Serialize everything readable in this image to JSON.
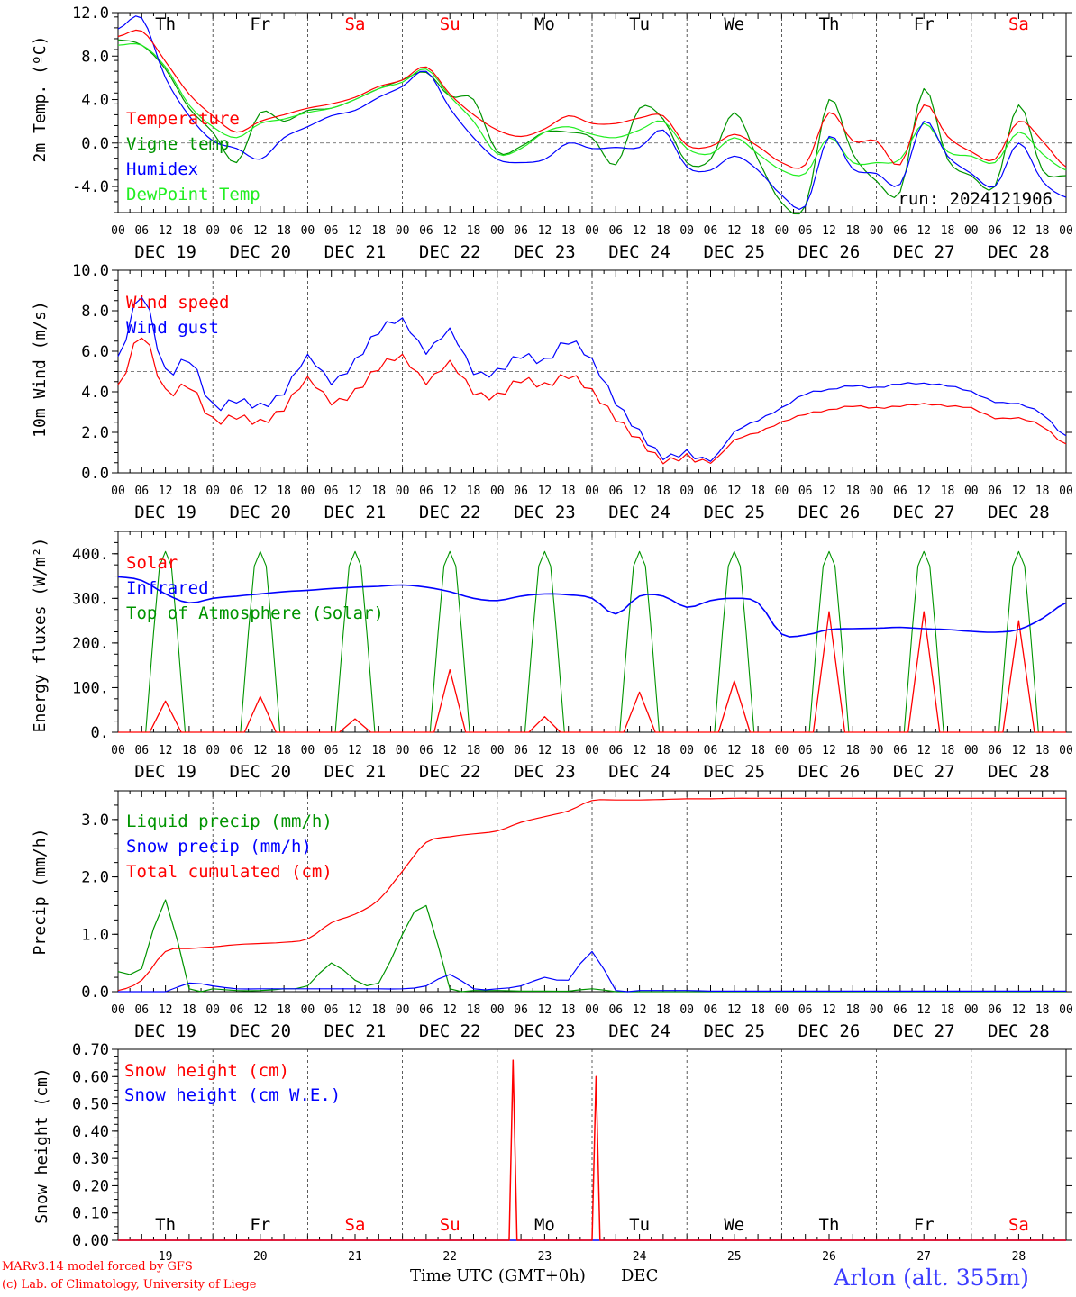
{
  "footer": {
    "credit1": "MARv3.14 model forced by GFS",
    "credit2": "(c) Lab. of Climatology, University of Liege",
    "xtitle": "Time UTC (GMT+0h)",
    "month": "DEC",
    "station": "Arlon (alt. 355m)"
  },
  "colors": {
    "red": "#ff0000",
    "green": "#009400",
    "blue": "#0000ff",
    "lightgreen": "#22ee22"
  },
  "days": [
    "Th",
    "Fr",
    "Sa",
    "Su",
    "Mo",
    "Tu",
    "We",
    "Th",
    "Fr",
    "Sa"
  ],
  "weekend_flags": [
    false,
    false,
    true,
    true,
    false,
    false,
    false,
    false,
    false,
    true
  ],
  "dates": [
    "DEC 19",
    "DEC 20",
    "DEC 21",
    "DEC 22",
    "DEC 23",
    "DEC 24",
    "DEC 25",
    "DEC 26",
    "DEC 27",
    "DEC 28"
  ],
  "day_numbers": [
    "19",
    "20",
    "21",
    "22",
    "23",
    "24",
    "25",
    "26",
    "27",
    "28"
  ],
  "hour_ticks": [
    "00",
    "06",
    "12",
    "18"
  ],
  "chart_data": [
    {
      "type": "line",
      "ylabel": "2m Temp. (ºC)",
      "ylim": [
        -6.4,
        12.0
      ],
      "yticks": [
        "12.0",
        "8.0",
        "4.0",
        "0.0",
        "-4.0"
      ],
      "yvals": [
        12,
        8,
        4,
        0,
        -4
      ],
      "refline": 0,
      "annotation": "run: 2024121906",
      "x_hours_from_dec19_00": [
        0,
        6,
        12,
        18,
        24,
        30,
        36,
        42,
        48,
        54,
        60,
        66,
        72,
        78,
        84,
        90,
        96,
        102,
        108,
        114,
        120,
        126,
        132,
        138,
        144,
        150,
        156,
        162,
        168,
        174,
        180,
        186,
        192,
        198,
        204,
        210,
        216,
        222,
        228,
        234,
        240
      ],
      "series": [
        {
          "name": "Temperature",
          "color": "red",
          "values": [
            9.8,
            10.3,
            7.5,
            4.5,
            2.5,
            1.0,
            2.0,
            2.6,
            3.2,
            3.6,
            4.2,
            5.2,
            5.8,
            7.0,
            4.5,
            2.6,
            1.2,
            0.6,
            1.3,
            2.5,
            1.8,
            1.8,
            2.3,
            2.5,
            -0.2,
            -0.3,
            0.8,
            -0.3,
            -1.8,
            -2.0,
            2.8,
            0.2,
            0.2,
            -2.0,
            3.5,
            0.6,
            -0.8,
            -1.5,
            2.0,
            0.2,
            -2.2
          ]
        },
        {
          "name": "Vigne temp",
          "color": "green",
          "values": [
            9.5,
            9.0,
            6.8,
            3.2,
            1.0,
            -1.8,
            2.8,
            2.0,
            3.0,
            3.2,
            4.0,
            5.0,
            5.8,
            6.5,
            4.3,
            4.0,
            -0.8,
            -0.3,
            1.0,
            1.0,
            0.5,
            -2.0,
            3.2,
            2.2,
            -1.8,
            -1.5,
            2.8,
            -1.5,
            -5.5,
            -5.8,
            4.0,
            -1.0,
            -3.5,
            -4.5,
            5.0,
            -1.5,
            -3.0,
            -4.0,
            3.5,
            -2.5,
            -3.0
          ]
        },
        {
          "name": "Humidex",
          "color": "blue",
          "values": [
            10.5,
            11.5,
            6.0,
            2.5,
            0.2,
            -0.5,
            -1.5,
            0.5,
            1.5,
            2.5,
            3.0,
            4.2,
            5.2,
            6.6,
            3.2,
            0.5,
            -1.5,
            -1.8,
            -1.5,
            0.0,
            -0.5,
            -0.4,
            -0.4,
            1.2,
            -2.2,
            -2.5,
            -1.2,
            -2.5,
            -4.8,
            -5.8,
            0.6,
            -2.4,
            -2.8,
            -3.8,
            2.0,
            -1.2,
            -2.8,
            -4.0,
            0.0,
            -3.5,
            -5.0
          ]
        },
        {
          "name": "DewPoint Temp",
          "color": "lightgreen",
          "values": [
            9.0,
            9.0,
            7.0,
            3.5,
            1.5,
            0.5,
            1.8,
            2.2,
            2.8,
            3.2,
            4.0,
            5.0,
            5.6,
            6.8,
            4.3,
            2.0,
            -1.0,
            -0.5,
            1.0,
            1.5,
            0.8,
            0.5,
            1.2,
            2.0,
            -0.5,
            -1.0,
            0.5,
            -1.0,
            -2.5,
            -2.8,
            0.5,
            -1.8,
            -1.8,
            -1.5,
            1.8,
            -0.8,
            -1.2,
            -1.8,
            1.0,
            -1.0,
            -2.5
          ]
        }
      ]
    },
    {
      "type": "line",
      "ylabel": "10m Wind (m/s)",
      "ylim": [
        0,
        10
      ],
      "yticks": [
        "10.0",
        "8.0",
        "6.0",
        "4.0",
        "2.0",
        "0.0"
      ],
      "yvals": [
        10,
        8,
        6,
        4,
        2,
        0
      ],
      "refline": 5,
      "x_hours_from_dec19_00": [
        0,
        6,
        12,
        18,
        24,
        30,
        36,
        42,
        48,
        54,
        60,
        66,
        72,
        78,
        84,
        90,
        96,
        102,
        108,
        114,
        120,
        126,
        132,
        138,
        144,
        150,
        156,
        162,
        168,
        174,
        180,
        186,
        192,
        198,
        204,
        210,
        216,
        222,
        228,
        234,
        240
      ],
      "series": [
        {
          "name": "Wind speed",
          "color": "red",
          "values": [
            4.2,
            6.8,
            4.0,
            4.3,
            2.6,
            2.8,
            2.5,
            3.2,
            4.6,
            3.5,
            4.0,
            5.2,
            5.7,
            4.5,
            5.4,
            4.0,
            3.8,
            4.6,
            4.3,
            4.8,
            4.0,
            2.7,
            1.6,
            0.6,
            0.8,
            0.5,
            1.6,
            2.0,
            2.5,
            2.9,
            3.1,
            3.3,
            3.2,
            3.3,
            3.4,
            3.3,
            3.2,
            2.7,
            2.7,
            2.3,
            1.4
          ]
        },
        {
          "name": "Wind gust",
          "color": "blue",
          "values": [
            5.6,
            8.8,
            5.0,
            5.6,
            3.3,
            3.6,
            3.3,
            4.0,
            5.7,
            4.5,
            5.5,
            7.0,
            7.5,
            6.0,
            7.0,
            5.0,
            5.0,
            5.8,
            5.5,
            6.5,
            5.5,
            3.5,
            2.0,
            0.8,
            1.0,
            0.6,
            2.0,
            2.6,
            3.2,
            3.9,
            4.1,
            4.3,
            4.2,
            4.4,
            4.4,
            4.3,
            4.0,
            3.5,
            3.4,
            2.9,
            1.8
          ]
        }
      ]
    },
    {
      "type": "line",
      "ylabel": "Energy fluxes (W/m²)",
      "ylim": [
        0,
        450
      ],
      "yticks": [
        "400.",
        "300.",
        "200.",
        "100.",
        "0."
      ],
      "yvals": [
        400,
        300,
        200,
        100,
        0
      ],
      "x_hours_from_dec19_00": [
        0,
        6,
        12,
        18,
        24,
        30,
        36,
        42,
        48,
        54,
        60,
        66,
        72,
        78,
        84,
        90,
        96,
        102,
        108,
        114,
        120,
        126,
        132,
        138,
        144,
        150,
        156,
        162,
        168,
        174,
        180,
        186,
        192,
        198,
        204,
        210,
        216,
        222,
        228,
        234,
        240
      ],
      "solar_day_peaks": [
        70,
        80,
        30,
        140,
        35,
        90,
        115,
        270,
        270,
        250
      ],
      "toa_peak": 405,
      "series": [
        {
          "name": "Solar",
          "color": "red",
          "values": "daily pulse, peaks per solar_day_peaks"
        },
        {
          "name": "Infrared",
          "color": "blue",
          "values": [
            348,
            340,
            310,
            290,
            300,
            305,
            310,
            315,
            318,
            322,
            325,
            327,
            330,
            325,
            315,
            300,
            295,
            305,
            310,
            308,
            300,
            265,
            305,
            305,
            280,
            295,
            300,
            290,
            220,
            218,
            230,
            232,
            233,
            235,
            232,
            230,
            226,
            224,
            230,
            255,
            290
          ]
        },
        {
          "name": "Top of Atmosphere (Solar)",
          "color": "green",
          "values": "daily pulse, peak toa_peak"
        }
      ]
    },
    {
      "type": "line",
      "ylabel": "Precip (mm/h)",
      "ylim": [
        0,
        3.5
      ],
      "yticks": [
        "3.0",
        "2.0",
        "1.0",
        "0.0"
      ],
      "yvals": [
        3,
        2,
        1,
        0
      ],
      "x_hours_from_dec19_00": [
        0,
        6,
        12,
        18,
        24,
        30,
        36,
        42,
        48,
        54,
        60,
        66,
        72,
        78,
        84,
        90,
        96,
        102,
        108,
        114,
        120,
        126,
        132,
        138,
        144,
        150,
        156,
        162,
        168,
        174,
        180,
        186,
        192,
        198,
        204,
        210,
        216,
        222,
        228,
        234,
        240
      ],
      "series": [
        {
          "name": "Liquid precip (mm/h)",
          "color": "green",
          "values": [
            0.35,
            0.4,
            1.6,
            0.05,
            0.05,
            0.02,
            0.02,
            0.05,
            0.1,
            0.5,
            0.2,
            0.15,
            1.0,
            1.5,
            0.05,
            0.02,
            0.02,
            0.01,
            0.01,
            0.01,
            0.05,
            0,
            0,
            0,
            0,
            0,
            0,
            0,
            0,
            0,
            0,
            0,
            0,
            0,
            0,
            0,
            0,
            0,
            0,
            0,
            0
          ]
        },
        {
          "name": "Snow precip (mm/h)",
          "color": "blue",
          "values": [
            0,
            0,
            0,
            0.15,
            0.1,
            0.05,
            0.05,
            0.05,
            0.05,
            0.05,
            0.05,
            0.05,
            0.05,
            0.1,
            0.3,
            0.05,
            0.05,
            0.1,
            0.25,
            0.2,
            0.7,
            0.02,
            0.02,
            0.02,
            0.02,
            0.01,
            0.01,
            0.01,
            0.01,
            0.01,
            0.01,
            0.01,
            0.01,
            0.01,
            0.01,
            0.01,
            0.01,
            0.01,
            0.01,
            0.01,
            0.01
          ]
        },
        {
          "name": "Total cumulated (cm)",
          "color": "red",
          "values": [
            0.02,
            0.2,
            0.7,
            0.75,
            0.78,
            0.82,
            0.84,
            0.86,
            0.92,
            1.2,
            1.35,
            1.6,
            2.1,
            2.6,
            2.7,
            2.75,
            2.8,
            2.95,
            3.05,
            3.15,
            3.33,
            3.34,
            3.34,
            3.35,
            3.36,
            3.36,
            3.37,
            3.37,
            3.37,
            3.37,
            3.37,
            3.37,
            3.37,
            3.37,
            3.37,
            3.37,
            3.37,
            3.37,
            3.37,
            3.37,
            3.37
          ]
        }
      ]
    },
    {
      "type": "line",
      "ylabel": "Snow height (cm)",
      "ylim": [
        0,
        0.7
      ],
      "yticks": [
        "0.70",
        "0.60",
        "0.50",
        "0.40",
        "0.30",
        "0.20",
        "0.10",
        "0.00"
      ],
      "yvals": [
        0.7,
        0.6,
        0.5,
        0.4,
        0.3,
        0.2,
        0.1,
        0
      ],
      "series": [
        {
          "name": "Snow height (cm)",
          "color": "red",
          "x_hours_from_dec19_00": [
            0,
            99,
            100,
            101,
            120,
            121,
            122,
            240
          ],
          "values": [
            0,
            0,
            0.66,
            0,
            0,
            0.6,
            0,
            0
          ]
        },
        {
          "name": "Snow height (cm W.E.)",
          "color": "blue",
          "x_hours_from_dec19_00": [
            0,
            240
          ],
          "values": [
            0,
            0
          ]
        }
      ]
    }
  ]
}
